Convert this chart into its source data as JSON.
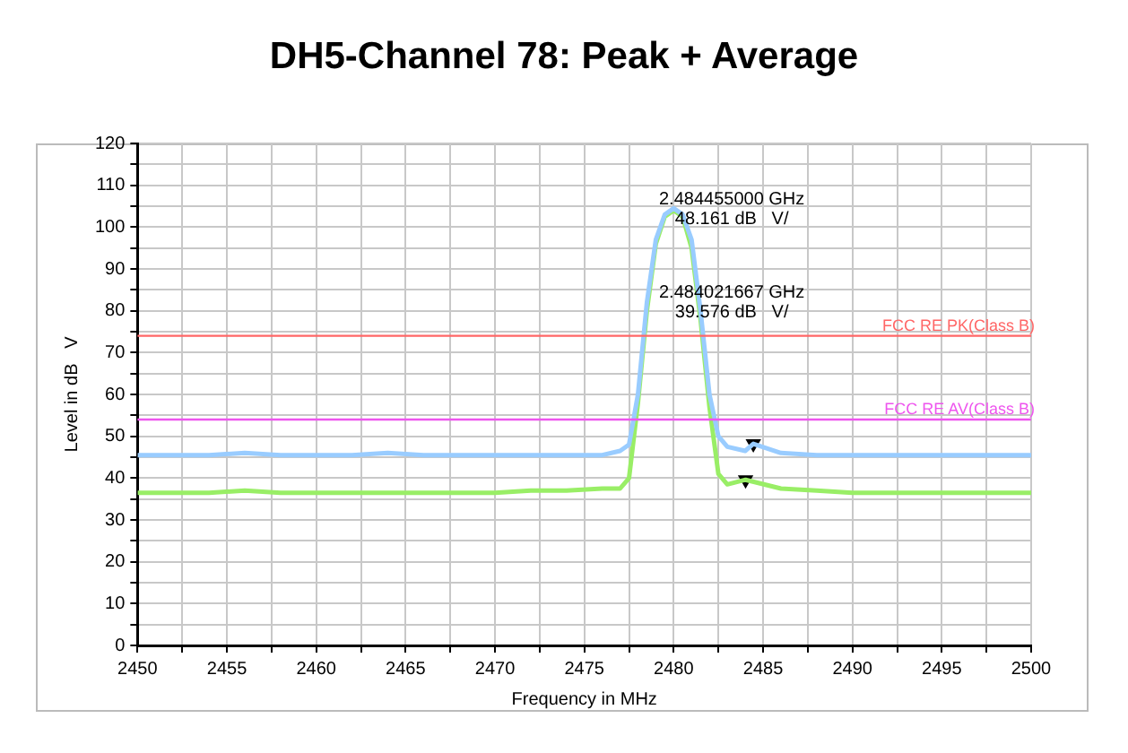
{
  "chart_data": {
    "type": "line",
    "title": "DH5-Channel 78: Peak + Average",
    "xlabel": "Frequency in MHz",
    "ylabel": "Level in dB   V",
    "xlim": [
      2450,
      2500
    ],
    "xticks": [
      2450,
      {
        "value": 2452.5,
        "label": null
      },
      2455,
      {
        "value": 2457.5,
        "label": null
      },
      2460,
      {
        "value": 2462.5,
        "label": null
      },
      2465,
      {
        "value": 2467.5,
        "label": null
      },
      2470,
      {
        "value": 2472.5,
        "label": null
      },
      2475,
      {
        "value": 2477.5,
        "label": null
      },
      2480,
      {
        "value": 2482.5,
        "label": null
      },
      2485,
      {
        "value": 2487.5,
        "label": null
      },
      2490,
      {
        "value": 2492.5,
        "label": null
      },
      2495,
      {
        "value": 2497.5,
        "label": null
      },
      2500
    ],
    "ylim": [
      0,
      120
    ],
    "yticks": [
      0,
      {
        "value": 5,
        "label": null
      },
      10,
      {
        "value": 15,
        "label": null
      },
      20,
      {
        "value": 25,
        "label": null
      },
      30,
      {
        "value": 35,
        "label": null
      },
      40,
      {
        "value": 45,
        "label": null
      },
      50,
      {
        "value": 55,
        "label": null
      },
      60,
      {
        "value": 65,
        "label": null
      },
      70,
      {
        "value": 75,
        "label": null
      },
      80,
      {
        "value": 85,
        "label": null
      },
      90,
      {
        "value": 95,
        "label": null
      },
      100,
      {
        "value": 105,
        "label": null
      },
      110,
      {
        "value": 115,
        "label": null
      },
      120
    ],
    "grid": true,
    "legend": false,
    "marker": "none",
    "line_style": "solid",
    "series": [
      {
        "color": "#99ccff",
        "x": [
          2450,
          2452,
          2454,
          2456,
          2458,
          2460,
          2462,
          2464,
          2466,
          2468,
          2470,
          2472,
          2474,
          2476,
          2477,
          2477.5,
          2478,
          2478.5,
          2479,
          2479.5,
          2480,
          2480.5,
          2481,
          2481.5,
          2482,
          2482.5,
          2483,
          2484,
          2484.455,
          2486,
          2488,
          2490,
          2492,
          2494,
          2496,
          2498,
          2500
        ],
        "values": [
          45.5,
          45.5,
          45.5,
          46,
          45.5,
          45.5,
          45.5,
          46,
          45.5,
          45.5,
          45.5,
          45.5,
          45.5,
          45.5,
          46.5,
          48,
          60,
          82,
          97,
          103,
          104.5,
          103,
          97,
          80,
          60,
          50,
          47.5,
          46.5,
          48.2,
          46,
          45.5,
          45.5,
          45.5,
          45.5,
          45.5,
          45.5,
          45.5
        ]
      },
      {
        "color": "#99ee66",
        "x": [
          2450,
          2452,
          2454,
          2456,
          2458,
          2460,
          2462,
          2464,
          2466,
          2468,
          2470,
          2472,
          2474,
          2476,
          2477,
          2477.5,
          2478,
          2478.5,
          2479,
          2479.5,
          2480,
          2480.5,
          2481,
          2481.5,
          2482,
          2482.5,
          2483,
          2484.022,
          2486,
          2488,
          2490,
          2492,
          2494,
          2496,
          2498,
          2500
        ],
        "values": [
          36.5,
          36.5,
          36.5,
          37,
          36.5,
          36.5,
          36.5,
          36.5,
          36.5,
          36.5,
          36.5,
          37,
          37,
          37.5,
          37.5,
          40,
          58,
          80,
          96,
          102.5,
          104,
          102.5,
          95,
          78,
          57,
          41,
          38.5,
          39.6,
          37.5,
          37,
          36.5,
          36.5,
          36.5,
          36.5,
          36.5,
          36.5
        ]
      },
      {
        "type": "scatter",
        "marker": "triangle",
        "color": "#000000",
        "x": [
          2484.455,
          2484.022
        ],
        "values": [
          48.2,
          39.6
        ]
      }
    ],
    "ref_lines": [
      {
        "axis": "y",
        "value": 74,
        "label": "FCC RE PK(Class B)",
        "color": "#ff6666"
      },
      {
        "axis": "y",
        "value": 54,
        "label": "FCC RE AV(Class B)",
        "color": "#ee55ee"
      }
    ],
    "annotations": [
      "2.484455000 GHz\n48.161 dB   V/",
      "2.484021667 GHz\n39.576 dB   V/"
    ]
  }
}
